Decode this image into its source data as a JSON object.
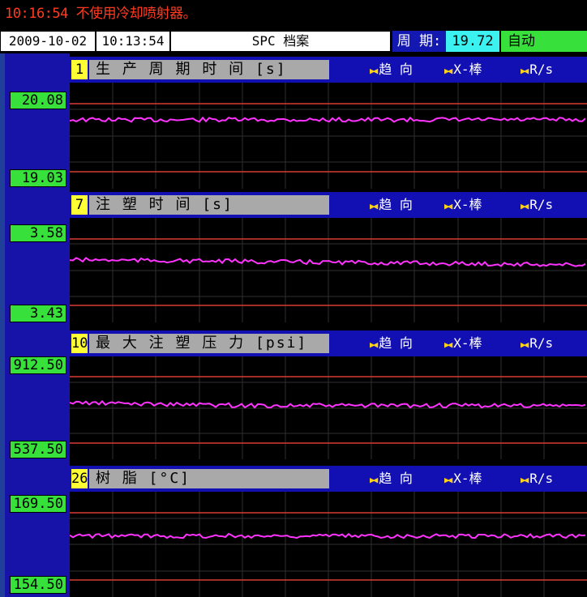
{
  "alarm": {
    "message": "10:16:54 不使用冷却喷射器。"
  },
  "header": {
    "date": "2009-10-02",
    "time": "10:13:54",
    "title": "SPC 档案",
    "cycle_label": "周 期:",
    "cycle_value": "19.72",
    "mode": "自动"
  },
  "legend": {
    "trend": "趋 向",
    "xbar": "X-棒",
    "range": "R/s"
  },
  "colors": {
    "limit_line": "#d73a32",
    "data_line": "#ff33ff",
    "grid": "#2f2f2f",
    "panel_blue": "#1712a8",
    "value_green": "#37e03a"
  },
  "icons": {
    "legend_marker": "double-triangle-icon"
  },
  "panels": [
    {
      "id": "1",
      "name": "生 产 周 期 时 间 [s]",
      "upper": "20.08",
      "lower": "19.03",
      "trace_level": 0.65
    },
    {
      "id": "7",
      "name": "注 塑 时 间 [s]",
      "upper": "3.58",
      "lower": "3.43",
      "trace_level": 0.6
    },
    {
      "id": "10",
      "name": "最 大 注 塑 压 力 [psi]",
      "upper": "912.50",
      "lower": "537.50",
      "trace_level": 0.55
    },
    {
      "id": "26",
      "name": "树 脂 [°C]",
      "upper": "169.50",
      "lower": "154.50",
      "trace_level": 0.58
    }
  ]
}
